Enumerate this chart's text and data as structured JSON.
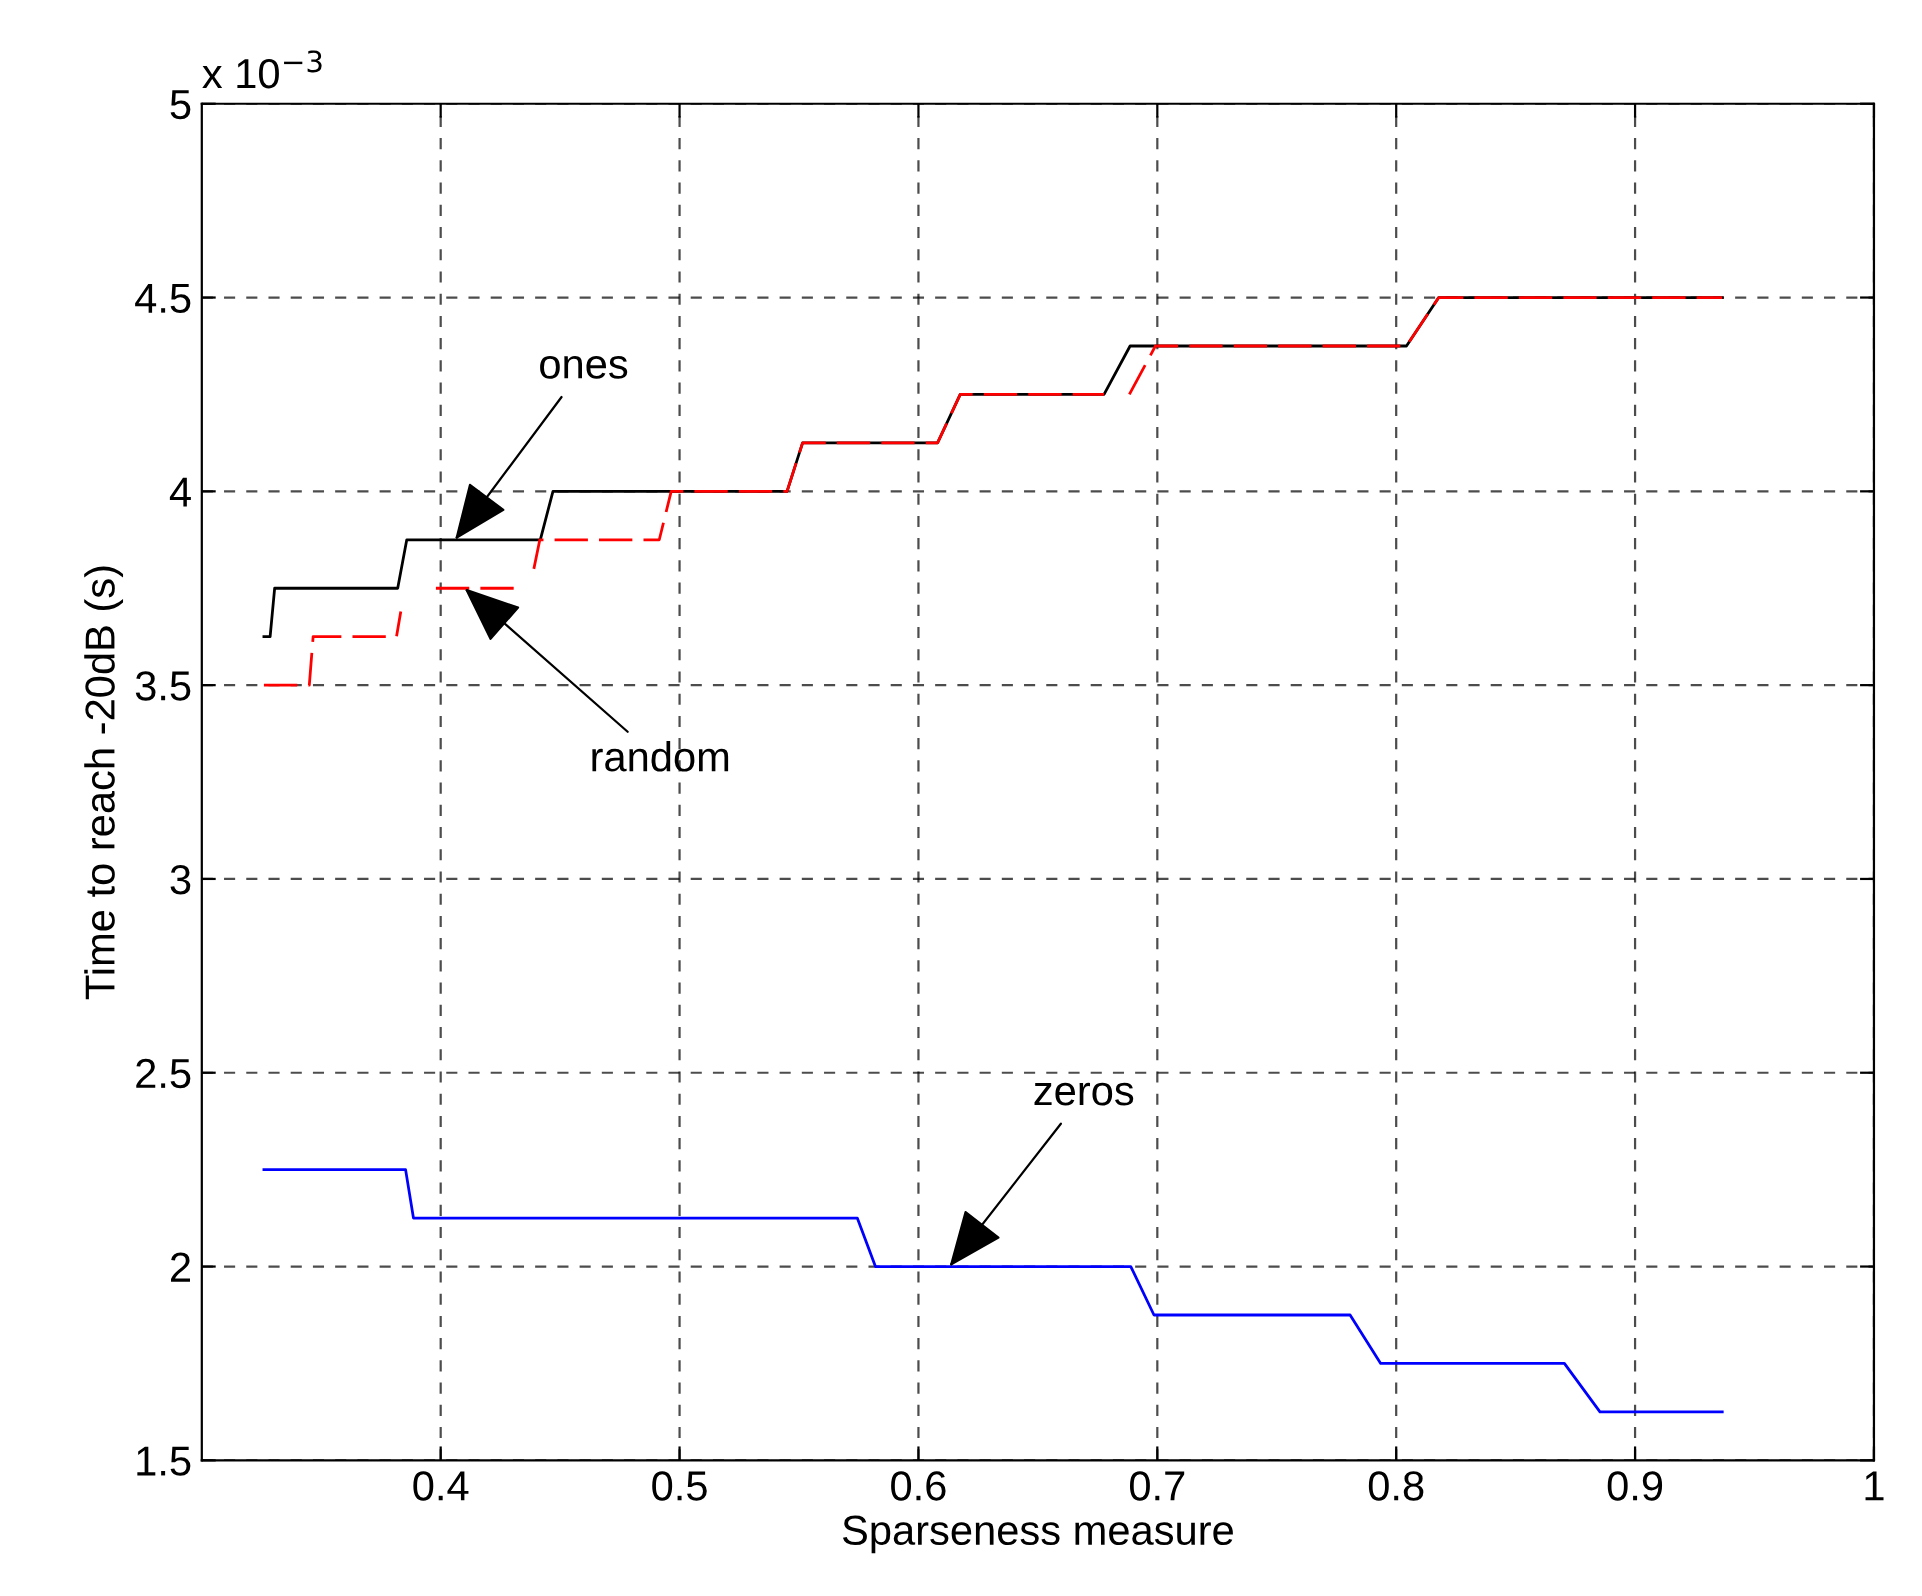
{
  "chart_data": {
    "type": "line",
    "xlabel": "Sparseness measure",
    "ylabel": "Time to reach -20dB (s)",
    "xlim": [
      0.3,
      1
    ],
    "xticks": [
      0.4,
      0.5,
      0.6,
      0.7,
      0.8,
      0.9,
      1
    ],
    "ylim": [
      1.5,
      5
    ],
    "yticks": [
      1.5,
      2,
      2.5,
      3,
      3.5,
      4,
      4.5,
      5
    ],
    "grid": true,
    "marker": "none",
    "series": [
      {
        "color": "#000000",
        "line_style": "solid",
        "x": [
          0.326,
          0.3286,
          0.3305,
          0.382,
          0.3858,
          0.4417,
          0.447,
          0.545,
          0.5515,
          0.608,
          0.6175,
          0.6777,
          0.6886,
          0.8043,
          0.8178,
          0.9365
        ],
        "values": [
          3.625,
          3.625,
          3.75,
          3.75,
          3.875,
          3.875,
          4.0,
          4.0,
          4.125,
          4.125,
          4.25,
          4.25,
          4.375,
          4.375,
          4.5,
          4.5
        ]
      },
      {
        "color": "#ff0000",
        "line_style": "dashed",
        "x": [
          0.326,
          0.345,
          0.3466,
          0.3815,
          0.3833,
          null,
          0.398,
          0.435,
          null,
          0.439,
          0.4415,
          0.4915,
          0.4965,
          0.545,
          0.5515,
          0.608,
          0.6175,
          0.6777,
          null,
          0.6883,
          0.6992,
          0.8043,
          0.8178,
          0.9365
        ],
        "values": [
          3.5,
          3.5,
          3.625,
          3.625,
          3.69,
          null,
          3.75,
          3.75,
          null,
          3.8,
          3.875,
          3.875,
          4.0,
          4.0,
          4.125,
          4.125,
          4.25,
          4.25,
          null,
          4.25,
          4.375,
          4.375,
          4.5,
          4.5
        ]
      },
      {
        "color": "#0000ff",
        "line_style": "solid",
        "x": [
          0.326,
          0.3853,
          0.3886,
          0.5744,
          0.582,
          0.6889,
          0.6986,
          0.7807,
          0.7935,
          0.8704,
          0.8853,
          0.9365
        ],
        "values": [
          2.25,
          2.25,
          2.125,
          2.125,
          2.0,
          2.0,
          1.875,
          1.875,
          1.75,
          1.75,
          1.625,
          1.625
        ]
      }
    ],
    "annotations": [
      {
        "text": "ones",
        "x": 0.406,
        "y": 3.875
      },
      {
        "text": "random",
        "x": 0.41,
        "y": 3.75
      },
      {
        "text": "zeros",
        "x": 0.613,
        "y": 2.0
      },
      "x 10$^{−3}$"
    ]
  }
}
